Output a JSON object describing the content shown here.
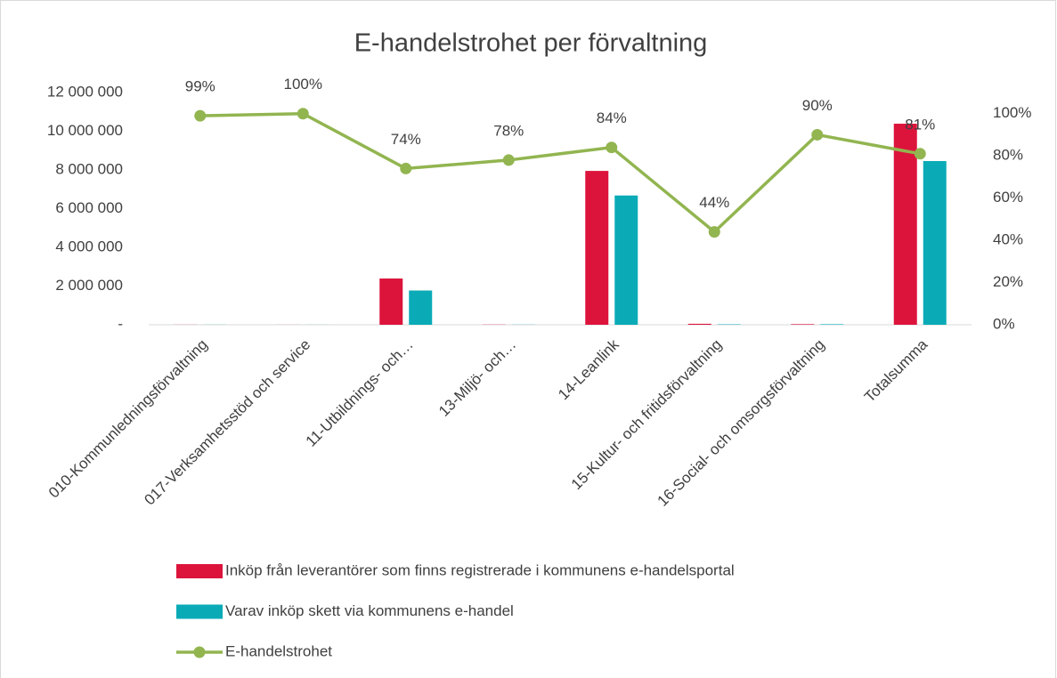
{
  "chart_data": {
    "type": "bar",
    "title": "E-handelstrohet per förvaltning",
    "categories": [
      "010-Kommunledningsförvaltning",
      "017-Verksamhetsstöd och service",
      "11-Utbildnings- och…",
      "13-Miljö- och…",
      "14-Leanlink",
      "15-Kultur- och fritidsförvaltning",
      "16-Social- och omsorgsförvaltning",
      "Totalsumma"
    ],
    "series": [
      {
        "name": "Inköp från leverantörer som finns registrerade i kommunens e-handelsportal",
        "color": "#dc143c",
        "values": [
          5000,
          3000,
          2390000,
          10000,
          7950000,
          50000,
          30000,
          10390000
        ]
      },
      {
        "name": "Varav inköp skett via kommunens e-handel",
        "color": "#0aabb7",
        "values": [
          4950,
          3000,
          1770000,
          7800,
          6680000,
          22000,
          27000,
          8460000
        ]
      },
      {
        "name": "E-handelstrohet",
        "color": "#92b550",
        "type": "line",
        "axis": "y2",
        "values": [
          99,
          100,
          74,
          78,
          84,
          44,
          90,
          81
        ],
        "value_labels": [
          "99%",
          "100%",
          "74%",
          "78%",
          "84%",
          "44%",
          "90%",
          "81%"
        ]
      }
    ],
    "ylim": [
      0,
      12000000
    ],
    "yticks": [
      {
        "value": 0,
        "label": "-"
      },
      {
        "value": 2000000,
        "label": "2 000 000"
      },
      {
        "value": 4000000,
        "label": "4 000 000"
      },
      {
        "value": 6000000,
        "label": "6 000 000"
      },
      {
        "value": 8000000,
        "label": "8 000 000"
      },
      {
        "value": 10000000,
        "label": "10 000 000"
      },
      {
        "value": 12000000,
        "label": "12 000 000"
      }
    ],
    "y2lim": [
      0,
      110
    ],
    "y2ticks": [
      {
        "value": 0,
        "label": "0%"
      },
      {
        "value": 20,
        "label": "20%"
      },
      {
        "value": 40,
        "label": "40%"
      },
      {
        "value": 60,
        "label": "60%"
      },
      {
        "value": 80,
        "label": "80%"
      },
      {
        "value": 100,
        "label": "100%"
      }
    ],
    "legend": "bottom"
  }
}
